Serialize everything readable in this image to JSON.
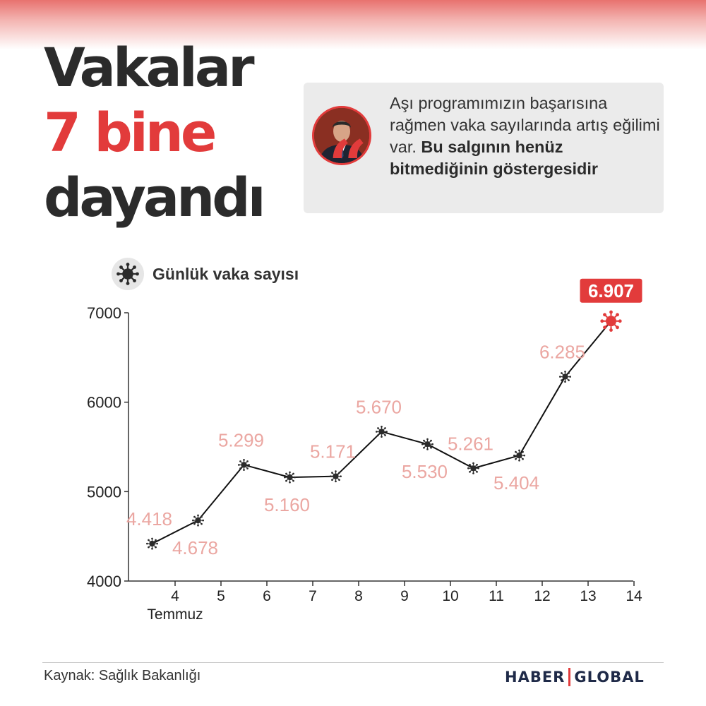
{
  "headline": {
    "line1": "Vakalar",
    "line2": "7 bine",
    "line3": "dayandı"
  },
  "quote": {
    "text_normal": "Aşı programımızın başarısına rağmen vaka sayılarında artış eğilimi var. ",
    "text_bold": "Bu salgının henüz bitmediğinin göstergesidir",
    "mark": "“"
  },
  "chart_title": {
    "label": "Günlük vaka sayısı",
    "icon": "virus-icon"
  },
  "colors": {
    "accent": "#e23b3b",
    "dark": "#2b2b2b",
    "data_label": "#eba7a2"
  },
  "chart_data": {
    "type": "line",
    "title": "Günlük vaka sayısı",
    "xlabel": "Temmuz",
    "ylabel": "",
    "x_ticks": [
      "4",
      "5",
      "6",
      "7",
      "8",
      "9",
      "10",
      "11",
      "12",
      "13",
      "14"
    ],
    "x": [
      3.5,
      4.5,
      5.5,
      6.5,
      7.5,
      8.5,
      9.5,
      10.5,
      11.5,
      12.5,
      13.5
    ],
    "values": [
      4418,
      4678,
      5299,
      5160,
      5171,
      5670,
      5530,
      5261,
      5404,
      6285,
      6907
    ],
    "labels": [
      "4.418",
      "4.678",
      "5.299",
      "5.160",
      "5.171",
      "5.670",
      "5.530",
      "5.261",
      "5.404",
      "6.285",
      "6.907"
    ],
    "label_position": [
      "above",
      "below",
      "above",
      "below",
      "above",
      "above",
      "below",
      "above",
      "below",
      "above",
      "above"
    ],
    "highlight_index": 10,
    "y_ticks": [
      4000,
      5000,
      6000,
      7000
    ],
    "xlim": [
      3,
      14
    ],
    "ylim": [
      4000,
      7000
    ],
    "grid": false,
    "marker": "virus-icon"
  },
  "footer": {
    "source": "Kaynak: Sağlık Bakanlığı",
    "brand_left": "HABER",
    "brand_right": "GLOBAL"
  }
}
